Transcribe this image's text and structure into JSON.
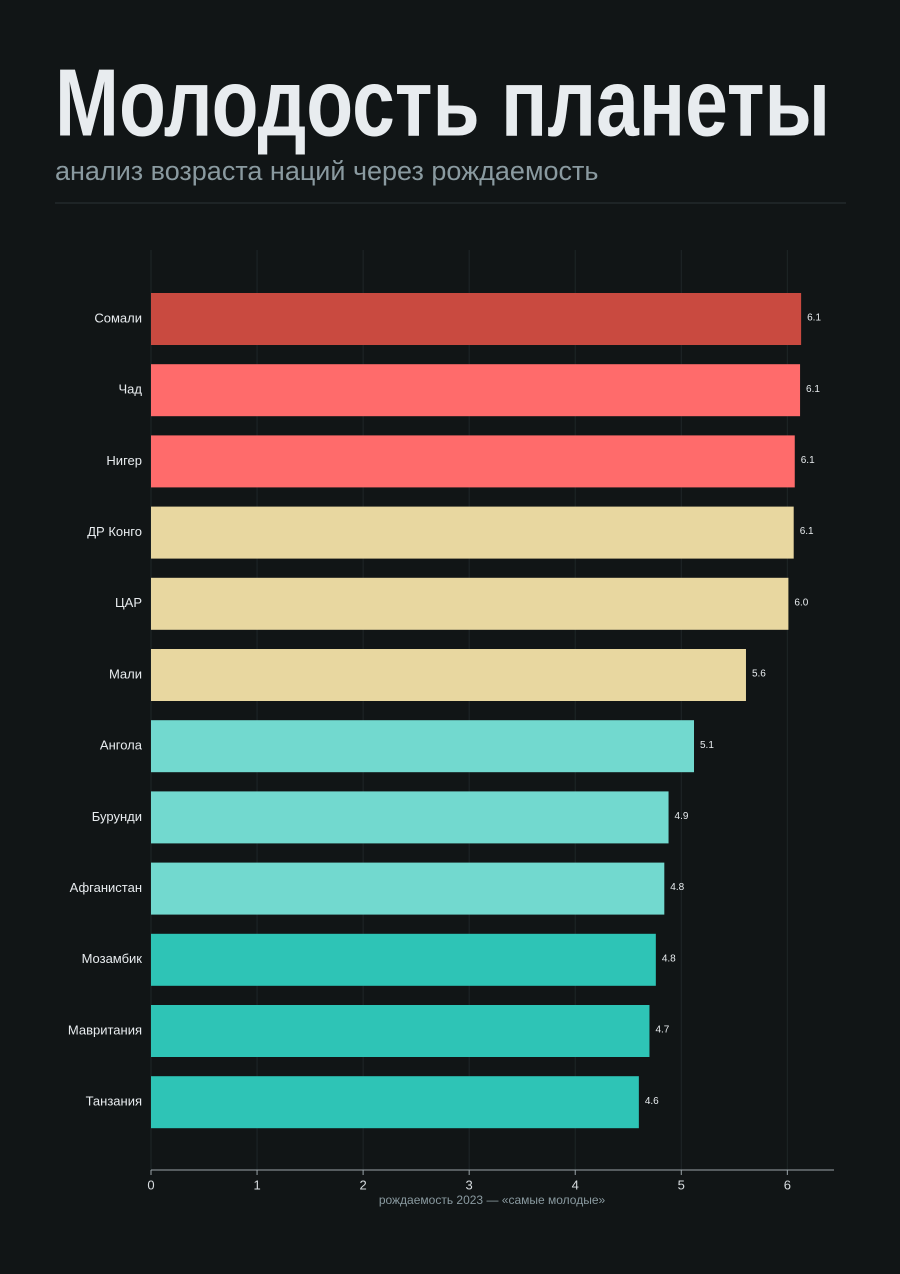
{
  "chart_data": {
    "type": "bar",
    "orientation": "horizontal",
    "title": "Молодость планеты",
    "subtitle": "анализ возраста наций через рождаемость",
    "x_label": "рождаемость 2023 — «самые молодые»",
    "categories": [
      "Сомали",
      "Чад",
      "Нигер",
      "ДР Конго",
      "ЦАР",
      "Мали",
      "Ангола",
      "Бурунди",
      "Афганистан",
      "Мозамбик",
      "Мавритания",
      "Танзания"
    ],
    "values": [
      6.13,
      6.12,
      6.07,
      6.06,
      6.01,
      5.61,
      5.12,
      4.88,
      4.84,
      4.76,
      4.7,
      4.6
    ],
    "value_labels": [
      "6.1",
      "6.1",
      "6.1",
      "6.1",
      "6.0",
      "5.6",
      "5.1",
      "4.9",
      "4.8",
      "4.8",
      "4.7",
      "4.6"
    ],
    "colors": [
      "#c94a40",
      "#ff6b6b",
      "#ff6b6b",
      "#e8d7a0",
      "#e8d7a0",
      "#e8d7a0",
      "#72d9cf",
      "#72d9cf",
      "#72d9cf",
      "#2ec4b6",
      "#2ec4b6",
      "#2ec4b6"
    ],
    "xlim": [
      0,
      6.44
    ],
    "xticks": [
      0,
      1,
      2,
      3,
      4,
      5,
      6
    ],
    "grid": true
  }
}
